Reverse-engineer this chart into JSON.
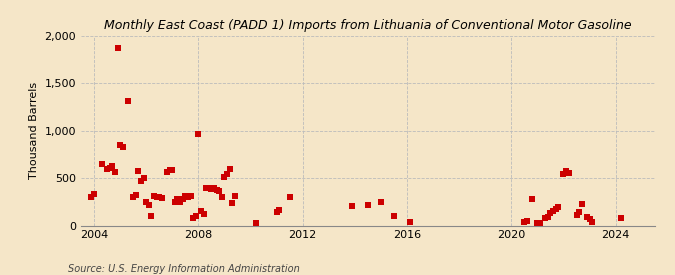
{
  "title": "Monthly East Coast (PADD 1) Imports from Lithuania of Conventional Motor Gasoline",
  "ylabel": "Thousand Barrels",
  "source": "Source: U.S. Energy Information Administration",
  "background_color": "#f5e6c8",
  "marker_color": "#cc0000",
  "xlim": [
    2003.5,
    2025.5
  ],
  "ylim": [
    0,
    2000
  ],
  "yticks": [
    0,
    500,
    1000,
    1500,
    2000
  ],
  "ytick_labels": [
    "0",
    "500",
    "1,000",
    "1,500",
    "2,000"
  ],
  "xticks": [
    2004,
    2008,
    2012,
    2016,
    2020,
    2024
  ],
  "data": [
    [
      2003.9,
      300
    ],
    [
      2004.0,
      330
    ],
    [
      2004.3,
      650
    ],
    [
      2004.5,
      600
    ],
    [
      2004.6,
      610
    ],
    [
      2004.7,
      625
    ],
    [
      2004.8,
      560
    ],
    [
      2004.9,
      1870
    ],
    [
      2005.0,
      850
    ],
    [
      2005.1,
      830
    ],
    [
      2005.3,
      1310
    ],
    [
      2005.5,
      300
    ],
    [
      2005.6,
      320
    ],
    [
      2005.7,
      570
    ],
    [
      2005.8,
      470
    ],
    [
      2005.9,
      500
    ],
    [
      2006.0,
      245
    ],
    [
      2006.1,
      220
    ],
    [
      2006.2,
      100
    ],
    [
      2006.3,
      310
    ],
    [
      2006.4,
      300
    ],
    [
      2006.5,
      300
    ],
    [
      2006.6,
      290
    ],
    [
      2006.8,
      560
    ],
    [
      2006.9,
      590
    ],
    [
      2007.0,
      580
    ],
    [
      2007.1,
      250
    ],
    [
      2007.2,
      280
    ],
    [
      2007.3,
      250
    ],
    [
      2007.4,
      280
    ],
    [
      2007.5,
      310
    ],
    [
      2007.6,
      300
    ],
    [
      2007.7,
      310
    ],
    [
      2007.8,
      75
    ],
    [
      2007.9,
      100
    ],
    [
      2008.0,
      960
    ],
    [
      2008.1,
      150
    ],
    [
      2008.2,
      120
    ],
    [
      2008.3,
      390
    ],
    [
      2008.4,
      400
    ],
    [
      2008.5,
      380
    ],
    [
      2008.6,
      400
    ],
    [
      2008.7,
      370
    ],
    [
      2008.8,
      360
    ],
    [
      2008.9,
      300
    ],
    [
      2009.0,
      510
    ],
    [
      2009.1,
      540
    ],
    [
      2009.2,
      600
    ],
    [
      2009.3,
      235
    ],
    [
      2009.4,
      310
    ],
    [
      2010.2,
      30
    ],
    [
      2011.0,
      145
    ],
    [
      2011.1,
      160
    ],
    [
      2011.5,
      300
    ],
    [
      2013.9,
      210
    ],
    [
      2014.5,
      220
    ],
    [
      2015.0,
      250
    ],
    [
      2015.5,
      95
    ],
    [
      2016.1,
      35
    ],
    [
      2020.5,
      35
    ],
    [
      2020.6,
      50
    ],
    [
      2020.8,
      275
    ],
    [
      2021.0,
      30
    ],
    [
      2021.1,
      25
    ],
    [
      2021.3,
      80
    ],
    [
      2021.4,
      90
    ],
    [
      2021.5,
      130
    ],
    [
      2021.6,
      150
    ],
    [
      2021.7,
      175
    ],
    [
      2021.8,
      200
    ],
    [
      2022.0,
      540
    ],
    [
      2022.1,
      570
    ],
    [
      2022.2,
      550
    ],
    [
      2022.5,
      110
    ],
    [
      2022.6,
      145
    ],
    [
      2022.7,
      225
    ],
    [
      2022.9,
      85
    ],
    [
      2023.0,
      65
    ],
    [
      2023.1,
      35
    ],
    [
      2024.2,
      75
    ]
  ]
}
